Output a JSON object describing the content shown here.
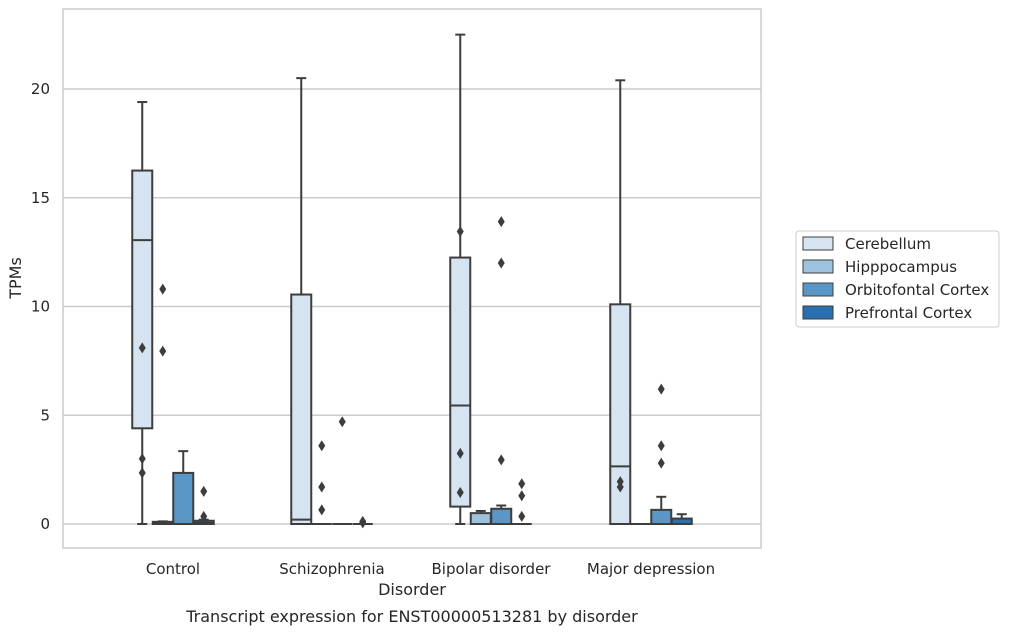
{
  "chart_data": {
    "type": "box",
    "title": "",
    "caption": "Transcript expression for ENST00000513281 by disorder",
    "xlabel": "Disorder",
    "ylabel": "TPMs",
    "ylim": [
      -1.1,
      23.5
    ],
    "yticks": [
      0,
      5,
      10,
      15,
      20
    ],
    "grid": "horizontal",
    "legend_position": "right",
    "categories": [
      "Control",
      "Schizophrenia",
      "Bipolar disorder",
      "Major depression"
    ],
    "series": [
      {
        "name": "Cerebellum",
        "color": "#d6e4f2",
        "boxes": [
          {
            "whisker_low": 0,
            "q1": 4.4,
            "median": 13.05,
            "q3": 16.25,
            "whisker_high": 19.4,
            "outliers": [
              8.1,
              3.0,
              2.35
            ]
          },
          {
            "whisker_low": 0,
            "q1": 0,
            "median": 0.2,
            "q3": 10.55,
            "whisker_high": 20.5,
            "outliers": []
          },
          {
            "whisker_low": 0,
            "q1": 0.8,
            "median": 5.45,
            "q3": 12.25,
            "whisker_high": 22.5,
            "outliers": [
              13.45,
              3.25,
              1.45
            ]
          },
          {
            "whisker_low": 0,
            "q1": 0,
            "median": 2.65,
            "q3": 10.1,
            "whisker_high": 20.4,
            "outliers": [
              1.95,
              1.7
            ]
          }
        ]
      },
      {
        "name": "Hipppocampus",
        "color": "#9dc3de",
        "boxes": [
          {
            "whisker_low": 0,
            "q1": 0,
            "median": 0.05,
            "q3": 0.1,
            "whisker_high": 0.12,
            "outliers": [
              10.8,
              7.95
            ]
          },
          {
            "whisker_low": 0,
            "q1": 0,
            "median": 0,
            "q3": 0,
            "whisker_high": 0,
            "outliers": [
              3.6,
              1.7,
              0.65
            ]
          },
          {
            "whisker_low": 0,
            "q1": 0,
            "median": 0,
            "q3": 0.5,
            "whisker_high": 0.6,
            "outliers": []
          },
          {
            "whisker_low": 0,
            "q1": 0,
            "median": 0,
            "q3": 0,
            "whisker_high": 0,
            "outliers": []
          }
        ]
      },
      {
        "name": "Orbitofontal Cortex",
        "color": "#5a97c7",
        "boxes": [
          {
            "whisker_low": 0,
            "q1": 0,
            "median": 0,
            "q3": 2.35,
            "whisker_high": 3.35,
            "outliers": []
          },
          {
            "whisker_low": 0,
            "q1": 0,
            "median": 0,
            "q3": 0,
            "whisker_high": 0,
            "outliers": [
              4.7
            ]
          },
          {
            "whisker_low": 0,
            "q1": 0,
            "median": 0,
            "q3": 0.7,
            "whisker_high": 0.85,
            "outliers": [
              13.9,
              12.0,
              2.95
            ]
          },
          {
            "whisker_low": 0,
            "q1": 0,
            "median": 0,
            "q3": 0.65,
            "whisker_high": 1.25,
            "outliers": [
              6.2,
              3.6,
              2.8
            ]
          }
        ]
      },
      {
        "name": "Prefrontal Cortex",
        "color": "#2a6fae",
        "boxes": [
          {
            "whisker_low": 0,
            "q1": 0,
            "median": 0.05,
            "q3": 0.15,
            "whisker_high": 0.2,
            "outliers": [
              1.5,
              0.35
            ]
          },
          {
            "whisker_low": 0,
            "q1": 0,
            "median": 0,
            "q3": 0,
            "whisker_high": 0,
            "outliers": [
              0.12,
              0.05
            ]
          },
          {
            "whisker_low": 0,
            "q1": 0,
            "median": 0,
            "q3": 0,
            "whisker_high": 0,
            "outliers": [
              1.85,
              1.3,
              0.35
            ]
          },
          {
            "whisker_low": 0,
            "q1": 0,
            "median": 0,
            "q3": 0.25,
            "whisker_high": 0.45,
            "outliers": []
          }
        ]
      }
    ]
  }
}
